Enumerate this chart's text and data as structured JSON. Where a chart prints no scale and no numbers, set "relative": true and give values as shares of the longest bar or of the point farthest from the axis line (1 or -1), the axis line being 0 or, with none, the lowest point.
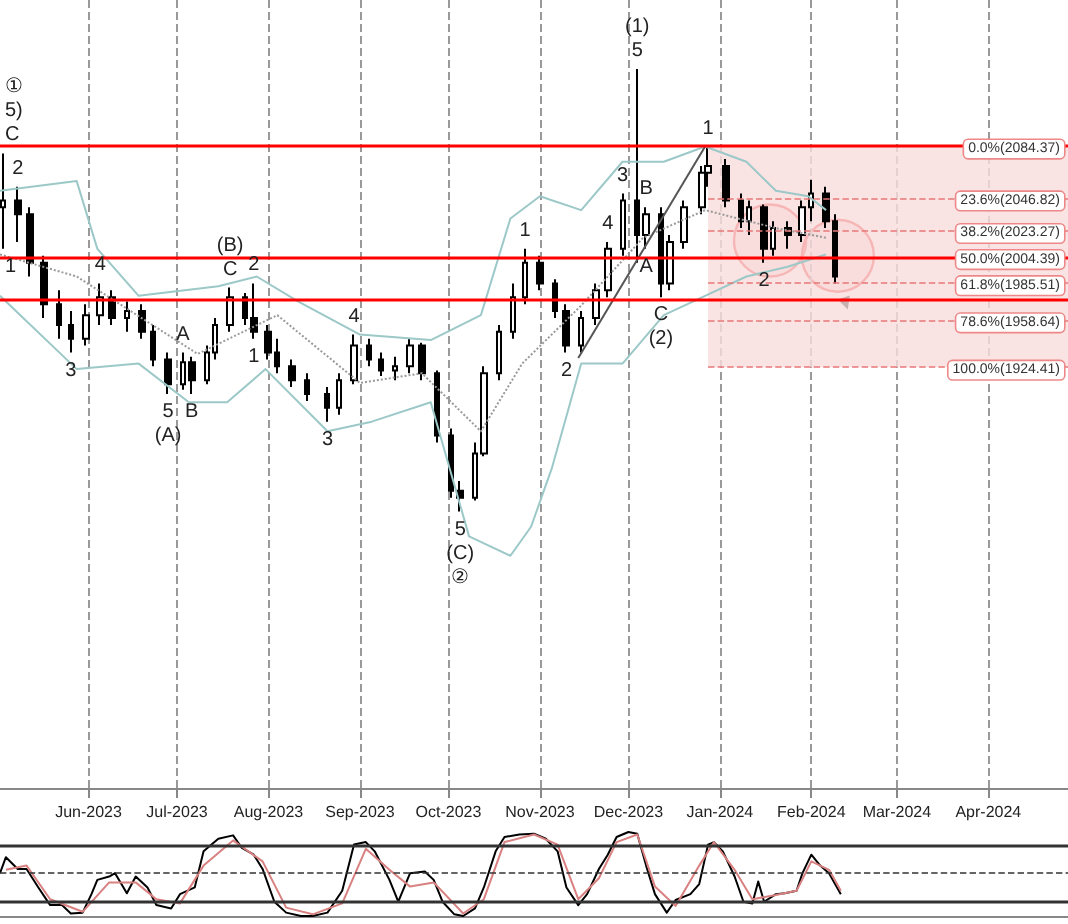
{
  "chart_data": [
    {
      "type": "candlestick",
      "xlim": [
        "2023-05-02",
        "2024-04-28"
      ],
      "ylim": [
        1620,
        2190
      ],
      "tick_labels": "x",
      "grid": "x",
      "xticks": [
        {
          "value": "2023-06-01",
          "label": "Jun-2023"
        },
        {
          "value": "2023-07-01",
          "label": "Jul-2023"
        },
        {
          "value": "2023-08-01",
          "label": "Aug-2023"
        },
        {
          "value": "2023-09-01",
          "label": "Sep-2023"
        },
        {
          "value": "2023-10-01",
          "label": "Oct-2023"
        },
        {
          "value": "2023-11-01",
          "label": "Nov-2023"
        },
        {
          "value": "2023-12-01",
          "label": "Dec-2023"
        },
        {
          "value": "2024-01-01",
          "label": "Jan-2024"
        },
        {
          "value": "2024-02-01",
          "label": "Feb-2024"
        },
        {
          "value": "2024-03-01",
          "label": "Mar-2024"
        },
        {
          "value": "2024-04-01",
          "label": "Apr-2024"
        }
      ],
      "series": [
        {
          "color": "#000000",
          "x": [
            "2023-05-03",
            "2023-05-08",
            "2023-05-12",
            "2023-05-17",
            "2023-05-22",
            "2023-05-26",
            "2023-05-31",
            "2023-06-05",
            "2023-06-09",
            "2023-06-14",
            "2023-06-19",
            "2023-06-23",
            "2023-06-28",
            "2023-07-03",
            "2023-07-06",
            "2023-07-11",
            "2023-07-14",
            "2023-07-19",
            "2023-07-24",
            "2023-07-27",
            "2023-08-01",
            "2023-08-04",
            "2023-08-09",
            "2023-08-14",
            "2023-08-21",
            "2023-08-25",
            "2023-08-30",
            "2023-09-04",
            "2023-09-08",
            "2023-09-13",
            "2023-09-18",
            "2023-09-22",
            "2023-09-27",
            "2023-10-02",
            "2023-10-05",
            "2023-10-10",
            "2023-10-13",
            "2023-10-18",
            "2023-10-23",
            "2023-10-27",
            "2023-11-01",
            "2023-11-06",
            "2023-11-10",
            "2023-11-15",
            "2023-11-20",
            "2023-11-24",
            "2023-11-29",
            "2023-12-04",
            "2023-12-07",
            "2023-12-12",
            "2023-12-15",
            "2023-12-20",
            "2023-12-26",
            "2023-12-28",
            "2024-01-03",
            "2024-01-08",
            "2024-01-11",
            "2024-01-16",
            "2024-01-19",
            "2024-01-24",
            "2024-01-29",
            "2024-02-01",
            "2024-02-06",
            "2024-02-09"
          ],
          "ohlc": [
            [
              2040,
              2079,
              2010,
              2045
            ],
            [
              2045,
              2055,
              2015,
              2035
            ],
            [
              2035,
              2040,
              1990,
              2000
            ],
            [
              2000,
              2005,
              1960,
              1970
            ],
            [
              1970,
              1980,
              1945,
              1955
            ],
            [
              1955,
              1965,
              1935,
              1945
            ],
            [
              1945,
              1970,
              1940,
              1962
            ],
            [
              1962,
              1985,
              1955,
              1975
            ],
            [
              1975,
              1980,
              1955,
              1960
            ],
            [
              1960,
              1972,
              1950,
              1965
            ],
            [
              1965,
              1970,
              1945,
              1950
            ],
            [
              1950,
              1955,
              1925,
              1930
            ],
            [
              1930,
              1935,
              1905,
              1912
            ],
            [
              1912,
              1935,
              1908,
              1928
            ],
            [
              1928,
              1932,
              1905,
              1915
            ],
            [
              1915,
              1940,
              1912,
              1935
            ],
            [
              1935,
              1960,
              1930,
              1955
            ],
            [
              1955,
              1982,
              1950,
              1975
            ],
            [
              1975,
              1978,
              1955,
              1960
            ],
            [
              1960,
              1985,
              1945,
              1950
            ],
            [
              1950,
              1955,
              1930,
              1935
            ],
            [
              1935,
              1945,
              1920,
              1925
            ],
            [
              1925,
              1930,
              1910,
              1915
            ],
            [
              1915,
              1920,
              1900,
              1905
            ],
            [
              1905,
              1910,
              1885,
              1895
            ],
            [
              1895,
              1920,
              1890,
              1915
            ],
            [
              1915,
              1948,
              1912,
              1940
            ],
            [
              1940,
              1945,
              1925,
              1930
            ],
            [
              1930,
              1935,
              1918,
              1922
            ],
            [
              1922,
              1932,
              1915,
              1925
            ],
            [
              1925,
              1945,
              1920,
              1940
            ],
            [
              1940,
              1942,
              1915,
              1920
            ],
            [
              1920,
              1922,
              1870,
              1875
            ],
            [
              1875,
              1880,
              1830,
              1835
            ],
            [
              1835,
              1842,
              1820,
              1830
            ],
            [
              1830,
              1870,
              1828,
              1862
            ],
            [
              1862,
              1925,
              1860,
              1920
            ],
            [
              1920,
              1955,
              1915,
              1950
            ],
            [
              1950,
              1985,
              1945,
              1975
            ],
            [
              1975,
              2010,
              1970,
              2000
            ],
            [
              2000,
              2005,
              1980,
              1985
            ],
            [
              1985,
              1988,
              1960,
              1965
            ],
            [
              1965,
              1970,
              1935,
              1940
            ],
            [
              1940,
              1965,
              1935,
              1960
            ],
            [
              1960,
              1985,
              1955,
              1980
            ],
            [
              1980,
              2015,
              1975,
              2010
            ],
            [
              2010,
              2050,
              2005,
              2045
            ],
            [
              2045,
              2140,
              2000,
              2020
            ],
            [
              2020,
              2040,
              2010,
              2035
            ],
            [
              2035,
              2040,
              1975,
              1985
            ],
            [
              1985,
              2020,
              1980,
              2015
            ],
            [
              2015,
              2045,
              2010,
              2040
            ],
            [
              2040,
              2070,
              2035,
              2065
            ],
            [
              2065,
              2084,
              2055,
              2070
            ],
            [
              2070,
              2075,
              2040,
              2045
            ],
            [
              2045,
              2050,
              2025,
              2030
            ],
            [
              2030,
              2045,
              2020,
              2040
            ],
            [
              2040,
              2042,
              2000,
              2010
            ],
            [
              2010,
              2030,
              2005,
              2025
            ],
            [
              2025,
              2030,
              2010,
              2020
            ],
            [
              2020,
              2045,
              2015,
              2040
            ],
            [
              2040,
              2060,
              2030,
              2050
            ],
            [
              2050,
              2055,
              2025,
              2030
            ],
            [
              2030,
              2035,
              1985,
              1990
            ]
          ]
        },
        {
          "type": "line",
          "color": "#9cc8c8",
          "x": [
            "2023-05-02",
            "2023-05-28",
            "2023-06-04",
            "2023-06-18",
            "2023-07-15",
            "2023-07-28",
            "2023-08-11",
            "2023-09-01",
            "2023-09-25",
            "2023-10-12",
            "2023-10-22",
            "2023-11-01",
            "2023-11-15",
            "2023-11-29",
            "2023-12-13",
            "2023-12-27",
            "2024-01-10",
            "2024-01-20",
            "2024-01-31",
            "2024-02-06"
          ],
          "values": [
            2052,
            2059,
            2010,
            1976,
            1983,
            1990,
            1972,
            1948,
            1944,
            1962,
            2032,
            2048,
            2038,
            2073,
            2073,
            2084,
            2073,
            2052,
            2048,
            2038
          ]
        },
        {
          "type": "line",
          "color": "#9cc8c8",
          "x": [
            "2023-05-02",
            "2023-05-28",
            "2023-06-18",
            "2023-07-05",
            "2023-07-18",
            "2023-07-31",
            "2023-08-21",
            "2023-09-05",
            "2023-09-25",
            "2023-10-08",
            "2023-10-22",
            "2023-10-29",
            "2023-11-05",
            "2023-11-15",
            "2023-11-29",
            "2023-12-13",
            "2023-12-27",
            "2024-01-10",
            "2024-01-24",
            "2024-02-06"
          ],
          "values": [
            1976,
            1923,
            1927,
            1899,
            1899,
            1923,
            1878,
            1885,
            1899,
            1802,
            1788,
            1809,
            1851,
            1927,
            1927,
            1962,
            1976,
            1990,
            1997,
            2006
          ]
        },
        {
          "type": "line",
          "color": "#999999",
          "line_style": "dotted",
          "x": [
            "2023-05-02",
            "2023-05-28",
            "2023-07-08",
            "2023-08-04",
            "2023-09-01",
            "2023-09-22",
            "2023-10-12",
            "2023-10-26",
            "2023-11-15",
            "2023-12-06",
            "2023-12-27",
            "2024-01-20",
            "2024-02-06"
          ],
          "values": [
            2006,
            1990,
            1934,
            1962,
            1913,
            1920,
            1878,
            1927,
            1969,
            2018,
            2038,
            2025,
            2018
          ]
        },
        {
          "type": "line",
          "color": "#555555",
          "x": [
            "2023-11-14",
            "2023-12-27"
          ],
          "values": [
            1931,
            2084
          ]
        }
      ],
      "ref_lines": [
        {
          "axis": "y",
          "value": 2084.37,
          "label": "0.0%(2084.37)",
          "color": "#ff0000",
          "line_style": "solid"
        },
        {
          "axis": "y",
          "value": 2046.82,
          "label": "23.6%(2046.82)",
          "color": "#e87878",
          "line_style": "dashed"
        },
        {
          "axis": "y",
          "value": 2023.27,
          "label": "38.2%(2023.27)",
          "color": "#e87878",
          "line_style": "dashed"
        },
        {
          "axis": "y",
          "value": 2004.39,
          "label": "50.0%(2004.39)",
          "color": "#ff0000",
          "line_style": "solid"
        },
        {
          "axis": "y",
          "value": 1985.51,
          "label": "61.8%(1985.51)",
          "color": "#e87878",
          "line_style": "dashed"
        },
        {
          "axis": "y",
          "value": 1973,
          "color": "#ff0000",
          "line_style": "solid"
        },
        {
          "axis": "y",
          "value": 1958.64,
          "label": "78.6%(1958.64)",
          "color": "#e87878",
          "line_style": "dashed"
        },
        {
          "axis": "y",
          "value": 1924.41,
          "label": "100.0%(1924.41)",
          "color": "#e87878",
          "line_style": "dashed"
        }
      ],
      "bands": [
        {
          "axis": "x",
          "from": "2023-12-28",
          "to": "2024-04-28",
          "color": "#f9dcdc"
        }
      ],
      "annotations": [
        {
          "text": "①",
          "x": "2023-05-03",
          "y": 2079
        },
        {
          "text": "5)",
          "x": "2023-05-03",
          "y": 2079
        },
        {
          "text": "C",
          "x": "2023-05-03",
          "y": 2079
        },
        {
          "text": "2",
          "x": "2023-05-08",
          "y": 2055
        },
        {
          "text": "1",
          "x": "2023-05-03",
          "y": 2010
        },
        {
          "text": "4",
          "x": "2023-06-05",
          "y": 1985
        },
        {
          "text": "3",
          "x": "2023-05-26",
          "y": 1935
        },
        {
          "text": "A",
          "x": "2023-07-03",
          "y": 1935
        },
        {
          "text": "B",
          "x": "2023-07-06",
          "y": 1905
        },
        {
          "text": "5",
          "x": "2023-06-28",
          "y": 1905
        },
        {
          "text": "(A)",
          "x": "2023-06-28",
          "y": 1905
        },
        {
          "text": "(B)",
          "x": "2023-07-19",
          "y": 1982
        },
        {
          "text": "C",
          "x": "2023-07-19",
          "y": 1982
        },
        {
          "text": "2",
          "x": "2023-07-27",
          "y": 1985
        },
        {
          "text": "1",
          "x": "2023-07-27",
          "y": 1945
        },
        {
          "text": "4",
          "x": "2023-08-30",
          "y": 1948
        },
        {
          "text": "3",
          "x": "2023-08-21",
          "y": 1885
        },
        {
          "text": "5",
          "x": "2023-10-05",
          "y": 1820
        },
        {
          "text": "(C)",
          "x": "2023-10-05",
          "y": 1820
        },
        {
          "text": "②",
          "x": "2023-10-05",
          "y": 1820
        },
        {
          "text": "1",
          "x": "2023-10-27",
          "y": 2010
        },
        {
          "text": "2",
          "x": "2023-11-10",
          "y": 1935
        },
        {
          "text": "(1)",
          "x": "2023-12-04",
          "y": 2140
        },
        {
          "text": "5",
          "x": "2023-12-04",
          "y": 2140
        },
        {
          "text": "3",
          "x": "2023-11-29",
          "y": 2050
        },
        {
          "text": "4",
          "x": "2023-11-24",
          "y": 2015
        },
        {
          "text": "B",
          "x": "2023-12-07",
          "y": 2040
        },
        {
          "text": "A",
          "x": "2023-12-07",
          "y": 2010
        },
        {
          "text": "C",
          "x": "2023-12-12",
          "y": 1975
        },
        {
          "text": "(2)",
          "x": "2023-12-12",
          "y": 1975
        },
        {
          "text": "1",
          "x": "2023-12-28",
          "y": 2084
        },
        {
          "text": "2",
          "x": "2024-01-16",
          "y": 2000
        }
      ]
    },
    {
      "type": "line",
      "relative": true,
      "xlim": [
        "2023-05-02",
        "2024-04-28"
      ],
      "tick_labels": false,
      "ref_lines": [
        {
          "axis": "y",
          "value": 0.85,
          "color": "#333333",
          "line_style": "solid"
        },
        {
          "axis": "y",
          "value": 0.51,
          "color": "#333333",
          "line_style": "dashed"
        },
        {
          "axis": "y",
          "value": 0.17,
          "color": "#333333",
          "line_style": "solid"
        }
      ],
      "series": [
        {
          "color": "#000000",
          "x": [
            "2023-05-02",
            "2023-05-04",
            "2023-05-08",
            "2023-05-11",
            "2023-05-15",
            "2023-05-19",
            "2023-05-23",
            "2023-05-26",
            "2023-05-30",
            "2023-06-02",
            "2023-06-04",
            "2023-06-08",
            "2023-06-10",
            "2023-06-14",
            "2023-06-17",
            "2023-06-21",
            "2023-06-24",
            "2023-06-29",
            "2023-07-02",
            "2023-07-07",
            "2023-07-10",
            "2023-07-15",
            "2023-07-20",
            "2023-07-23",
            "2023-07-27",
            "2023-07-30",
            "2023-08-03",
            "2023-08-07",
            "2023-08-12",
            "2023-08-16",
            "2023-08-21",
            "2023-08-26",
            "2023-08-30",
            "2023-09-03",
            "2023-09-06",
            "2023-09-11",
            "2023-09-14",
            "2023-09-18",
            "2023-09-23",
            "2023-09-26",
            "2023-09-29",
            "2023-10-03",
            "2023-10-06",
            "2023-10-10",
            "2023-10-13",
            "2023-10-17",
            "2023-10-20",
            "2023-10-25",
            "2023-10-30",
            "2023-11-03",
            "2023-11-07",
            "2023-11-10",
            "2023-11-14",
            "2023-11-17",
            "2023-11-21",
            "2023-11-24",
            "2023-11-27",
            "2023-12-01",
            "2023-12-04",
            "2023-12-07",
            "2023-12-10",
            "2023-12-14",
            "2023-12-17",
            "2023-12-22",
            "2023-12-25",
            "2023-12-28",
            "2023-12-30",
            "2024-01-02",
            "2024-01-06",
            "2024-01-09",
            "2024-01-12",
            "2024-01-14",
            "2024-01-16",
            "2024-01-20",
            "2024-01-23",
            "2024-01-27",
            "2024-01-29",
            "2024-02-01",
            "2024-02-04",
            "2024-02-07",
            "2024-02-11"
          ],
          "values": [
            0.51,
            0.7,
            0.56,
            0.56,
            0.34,
            0.13,
            0.13,
            0.03,
            0.04,
            0.26,
            0.43,
            0.47,
            0.51,
            0.27,
            0.47,
            0.34,
            0.13,
            0.09,
            0.26,
            0.34,
            0.77,
            0.92,
            0.96,
            0.81,
            0.73,
            0.56,
            0.17,
            0.04,
            0,
            0,
            0.04,
            0.3,
            0.85,
            0.88,
            0.77,
            0.43,
            0.17,
            0.51,
            0.53,
            0.43,
            0.17,
            0.02,
            0,
            0.09,
            0.34,
            0.77,
            0.94,
            0.97,
            0.98,
            0.92,
            0.77,
            0.34,
            0.13,
            0.26,
            0.56,
            0.73,
            0.94,
            1,
            0.98,
            0.6,
            0.26,
            0.04,
            0.19,
            0.26,
            0.38,
            0.85,
            0.88,
            0.77,
            0.47,
            0.17,
            0.15,
            0.41,
            0.17,
            0.26,
            0.27,
            0.3,
            0.51,
            0.73,
            0.6,
            0.51,
            0.26
          ]
        },
        {
          "color": "#d98080",
          "x": [
            "2023-05-04",
            "2023-05-11",
            "2023-05-19",
            "2023-05-30",
            "2023-06-08",
            "2023-06-17",
            "2023-06-24",
            "2023-07-02",
            "2023-07-10",
            "2023-07-20",
            "2023-07-30",
            "2023-08-07",
            "2023-08-16",
            "2023-08-26",
            "2023-09-03",
            "2023-09-11",
            "2023-09-18",
            "2023-09-26",
            "2023-10-06",
            "2023-10-13",
            "2023-10-20",
            "2023-10-30",
            "2023-11-07",
            "2023-11-14",
            "2023-11-21",
            "2023-11-27",
            "2023-12-04",
            "2023-12-10",
            "2023-12-17",
            "2023-12-25",
            "2023-12-30",
            "2024-01-06",
            "2024-01-12",
            "2024-01-20",
            "2024-01-27",
            "2024-02-01",
            "2024-02-07",
            "2024-02-11"
          ],
          "values": [
            0.55,
            0.6,
            0.2,
            0.05,
            0.4,
            0.4,
            0.2,
            0.15,
            0.6,
            0.9,
            0.65,
            0.1,
            0.02,
            0.15,
            0.8,
            0.55,
            0.35,
            0.4,
            0.03,
            0.2,
            0.88,
            0.97,
            0.85,
            0.2,
            0.45,
            0.88,
            0.97,
            0.35,
            0.12,
            0.6,
            0.88,
            0.55,
            0.2,
            0.25,
            0.3,
            0.65,
            0.55,
            0.3
          ]
        }
      ]
    }
  ]
}
